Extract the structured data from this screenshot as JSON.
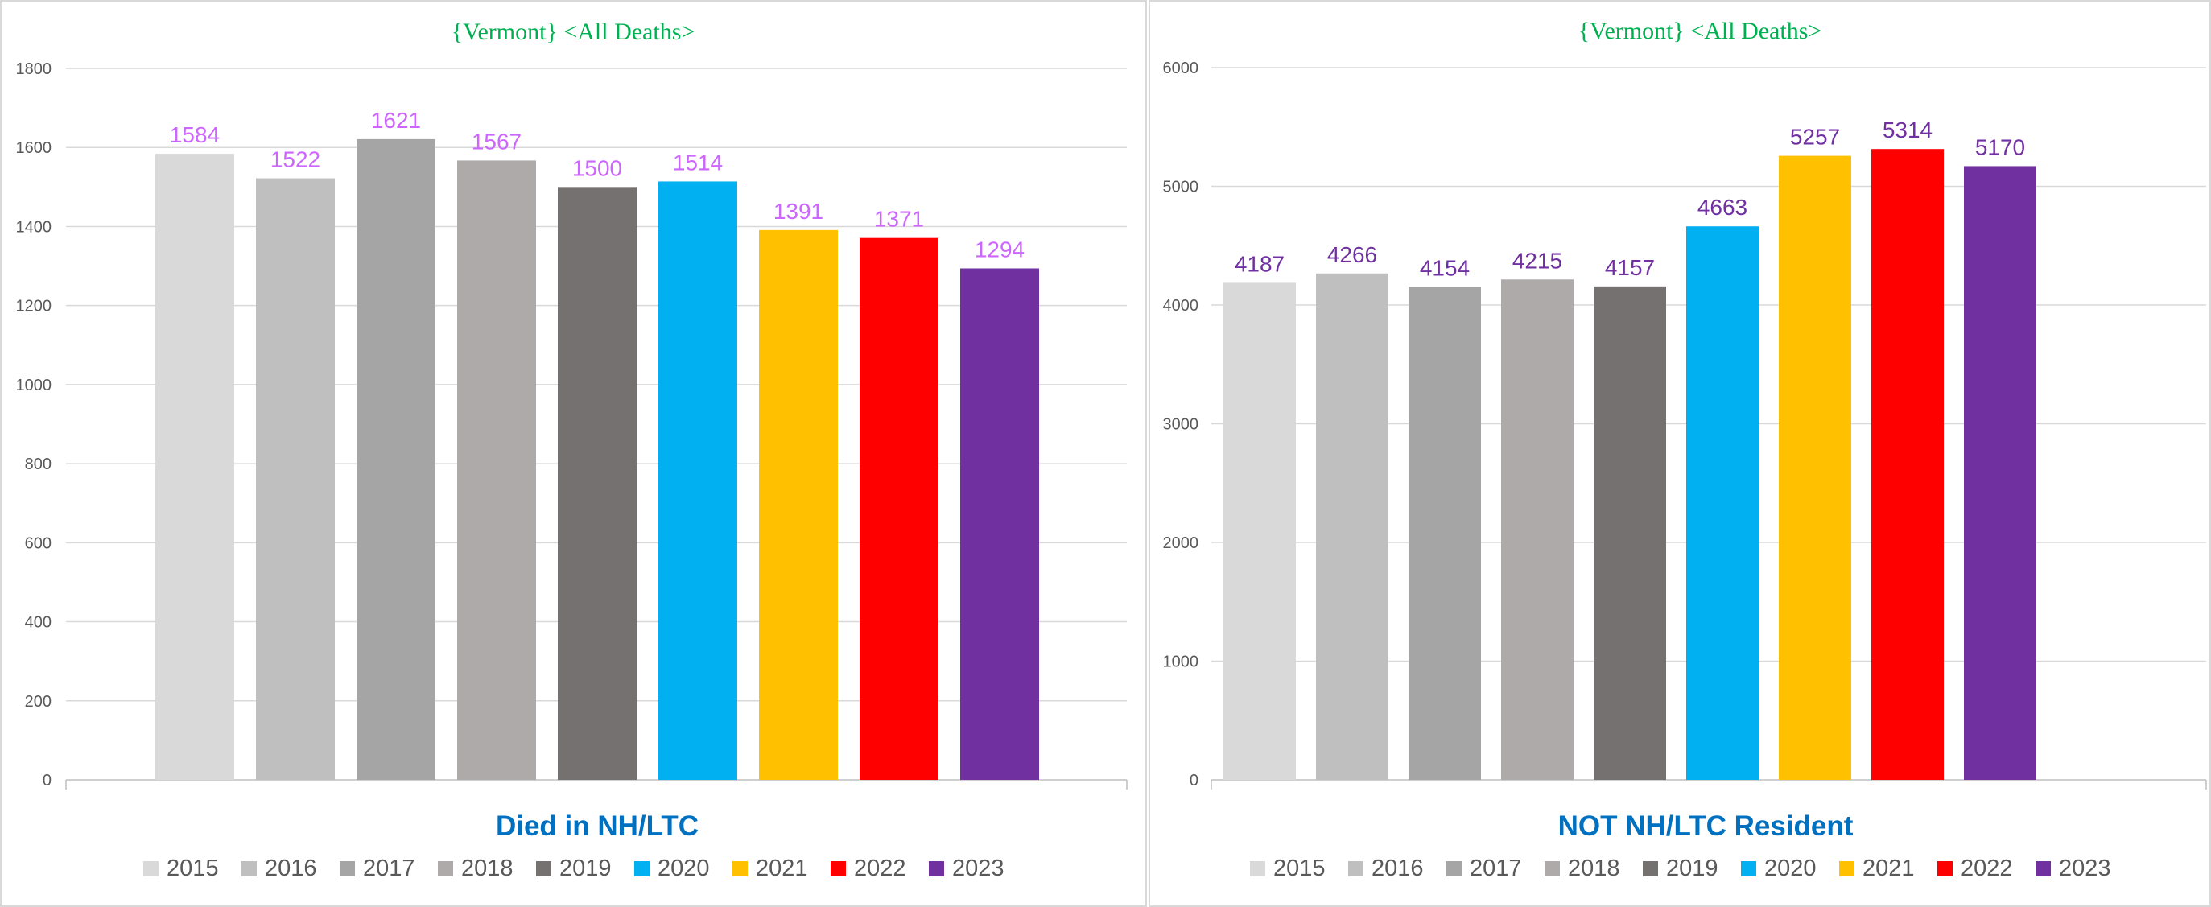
{
  "chart_data": [
    {
      "type": "bar",
      "title": "{Vermont}   <All Deaths>",
      "xlabel": "Died  in NH/LTC",
      "ylabel": "",
      "ylim": [
        0,
        1800
      ],
      "yticks": [
        0,
        200,
        400,
        600,
        800,
        1000,
        1200,
        1400,
        1600,
        1800
      ],
      "categories": [
        "2015",
        "2016",
        "2017",
        "2018",
        "2019",
        "2020",
        "2021",
        "2022",
        "2023"
      ],
      "values": [
        1584,
        1522,
        1621,
        1567,
        1500,
        1514,
        1391,
        1371,
        1294
      ],
      "legend": [
        "2015",
        "2016",
        "2017",
        "2018",
        "2019",
        "2020",
        "2021",
        "2022",
        "2023"
      ],
      "legend_position": "bottom",
      "grid": true
    },
    {
      "type": "bar",
      "title": "{Vermont}   <All Deaths>",
      "xlabel": "NOT NH/LTC Resident",
      "ylabel": "",
      "ylim": [
        0,
        6000
      ],
      "yticks": [
        0,
        1000,
        2000,
        3000,
        4000,
        5000,
        6000
      ],
      "categories": [
        "2015",
        "2016",
        "2017",
        "2018",
        "2019",
        "2020",
        "2021",
        "2022",
        "2023"
      ],
      "values": [
        4187,
        4266,
        4154,
        4215,
        4157,
        4663,
        5257,
        5314,
        5170
      ],
      "legend": [
        "2015",
        "2016",
        "2017",
        "2018",
        "2019",
        "2020",
        "2021",
        "2022",
        "2023"
      ],
      "legend_position": "bottom",
      "grid": true
    }
  ],
  "colors": {
    "bars": [
      "#d9d9d9",
      "#bfbfbf",
      "#a5a5a5",
      "#aeaaaa",
      "#767171",
      "#00b0f0",
      "#ffc000",
      "#ff0000",
      "#7030a0"
    ],
    "title": "#00b050",
    "xlabel": "#0070c0",
    "value_label_left": "#cc66ff",
    "value_label_right": "#7030a0",
    "grid": "#d9d9d9",
    "tick": "#595959"
  }
}
